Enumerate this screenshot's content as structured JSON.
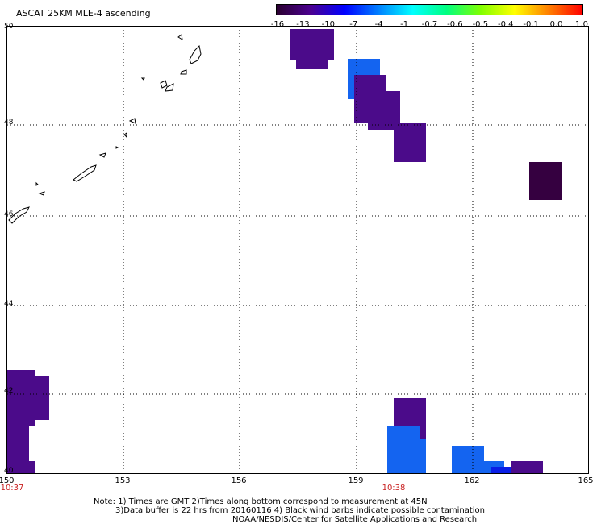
{
  "title": "ASCAT 25KM MLE-4 ascending",
  "colorbar": {
    "labels": [
      "-16",
      "-13",
      "-10",
      "-7",
      "-4",
      "-1",
      "-0.7",
      "-0.6",
      "-0.5",
      "-0.4",
      "-0.1",
      "0.0",
      "1.0"
    ],
    "gradient": [
      "#2a0030",
      "#4b0090",
      "#0000ff",
      "#0080ff",
      "#00ffff",
      "#00ff80",
      "#80ff00",
      "#ffff00",
      "#ff8000",
      "#ff0000"
    ]
  },
  "map": {
    "lon_ticks": [
      "150",
      "153",
      "156",
      "159",
      "162",
      "165"
    ],
    "lat_ticks": [
      "50",
      "48",
      "46",
      "44",
      "42",
      "40"
    ],
    "times": [
      "10:37",
      "10:38"
    ],
    "colors": {
      "deep": "#350040",
      "purple": "#4b0b8a",
      "blue": "#1464f0",
      "bright_blue": "#0a1ee6"
    }
  },
  "footer": {
    "line1": "Note: 1) Times are GMT 2)Times along bottom correspond to measurement at 45N",
    "line2": "3)Data buffer is 22 hrs from 20160116 4) Black wind barbs indicate possible contamination",
    "line3": "NOAA/NESDIS/Center for Satellite Applications and Research"
  }
}
